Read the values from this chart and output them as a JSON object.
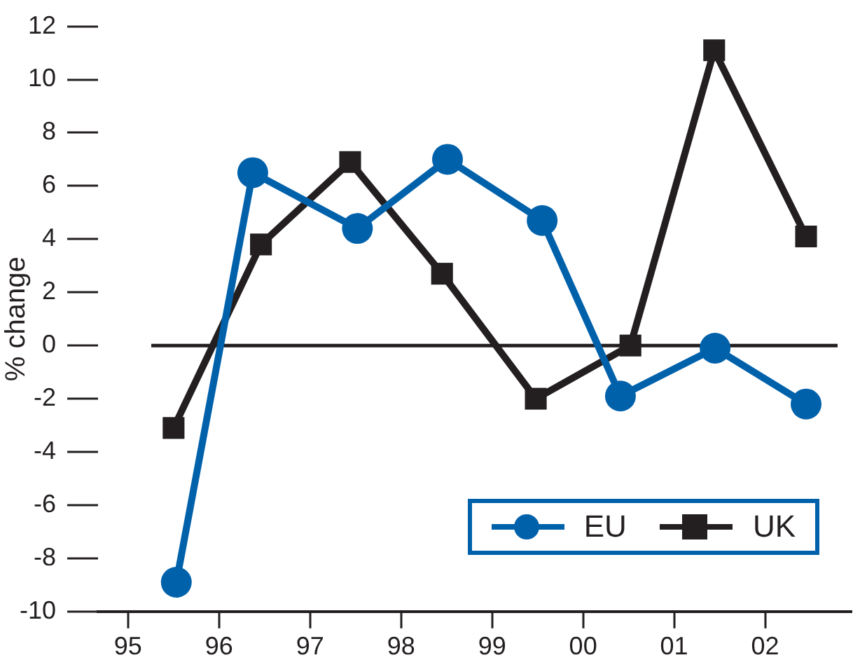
{
  "chart_data": {
    "type": "line",
    "ylabel": "% change",
    "xlim": [
      1994.67,
      2002.95
    ],
    "xticks": [
      {
        "value": 1995,
        "label": "95"
      },
      {
        "value": 1996,
        "label": "96"
      },
      {
        "value": 1997,
        "label": "97"
      },
      {
        "value": 1998,
        "label": "98"
      },
      {
        "value": 1999,
        "label": "99"
      },
      {
        "value": 2000,
        "label": "00"
      },
      {
        "value": 2001,
        "label": "01"
      },
      {
        "value": 2002,
        "label": "02"
      }
    ],
    "ylim": [
      -10,
      12
    ],
    "yticks": [
      -10,
      -8,
      -6,
      -4,
      -2,
      0,
      2,
      4,
      6,
      8,
      10,
      12
    ],
    "grid": false,
    "legend": "bottom right",
    "ref_lines": [
      {
        "axis": "y",
        "value": 0,
        "color": "#231f20"
      }
    ],
    "series": [
      {
        "name": "EU",
        "color": "#0061ab",
        "marker": "circle",
        "x": [
          1995.53,
          1996.37,
          1997.52,
          1998.51,
          1999.55,
          2000.41,
          2001.45,
          2002.45
        ],
        "values": [
          -8.9,
          6.5,
          4.4,
          7.0,
          4.7,
          -1.9,
          -0.1,
          -2.2
        ]
      },
      {
        "name": "UK",
        "color": "#231f20",
        "marker": "square",
        "x": [
          1995.5,
          1996.46,
          1997.44,
          1998.45,
          1999.48,
          2000.52,
          2001.44,
          2002.45
        ],
        "values": [
          -3.1,
          3.8,
          6.9,
          2.7,
          -2.0,
          0.0,
          11.1,
          4.1
        ]
      }
    ]
  }
}
